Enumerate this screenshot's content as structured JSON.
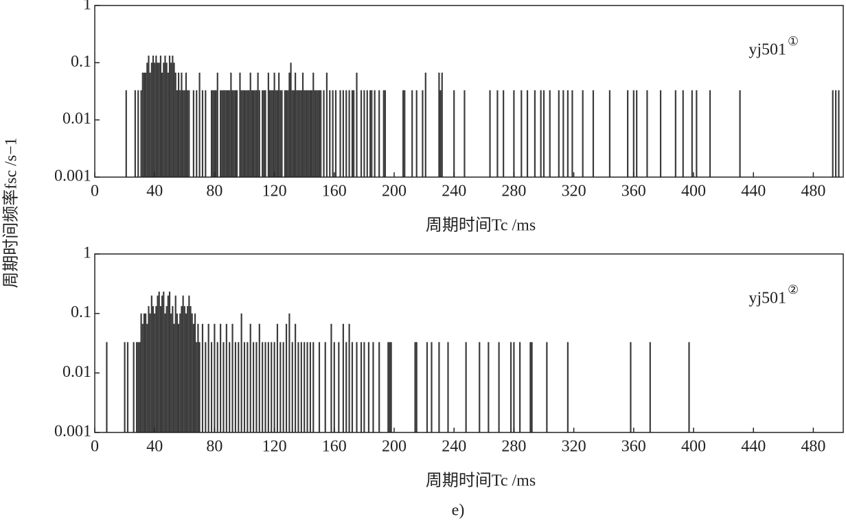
{
  "figure_ylabel": "周期时间频率fsc /s−1",
  "caption": "e)",
  "chart_data": [
    {
      "type": "bar",
      "annotation": "yj501",
      "annotation_superscript": "①",
      "xlabel": "周期时间Tc /ms",
      "color": "#3a3a3a",
      "log_y": true,
      "grid": false,
      "xlim": [
        0,
        500
      ],
      "xticks": [
        0,
        40,
        80,
        120,
        160,
        200,
        240,
        280,
        320,
        360,
        400,
        440,
        480
      ],
      "ylim": [
        0.001,
        1
      ],
      "yticks": [
        0.001,
        0.01,
        0.1,
        1
      ],
      "x": [
        21,
        27,
        29,
        31,
        32,
        33,
        34,
        35,
        36,
        37,
        38,
        39,
        40,
        41,
        42,
        43,
        44,
        45,
        46,
        47,
        48,
        49,
        50,
        51,
        52,
        53,
        54,
        55,
        56,
        57,
        58,
        59,
        60,
        61,
        62,
        63,
        66,
        68,
        70,
        72,
        74,
        78,
        79,
        80,
        81,
        82,
        84,
        85,
        86,
        87,
        88,
        89,
        90,
        91,
        92,
        93,
        94,
        95,
        97,
        98,
        99,
        100,
        101,
        102,
        103,
        104,
        105,
        106,
        107,
        108,
        109,
        110,
        112,
        113,
        114,
        116,
        117,
        118,
        119,
        120,
        121,
        122,
        123,
        124,
        125,
        127,
        128,
        129,
        130,
        131,
        132,
        133,
        134,
        135,
        136,
        137,
        138,
        139,
        140,
        141,
        142,
        143,
        144,
        145,
        146,
        147,
        148,
        149,
        150,
        151,
        153,
        155,
        157,
        159,
        161,
        164,
        166,
        168,
        170,
        172,
        173,
        175,
        178,
        180,
        182,
        184,
        185,
        187,
        190,
        193,
        194,
        206,
        207,
        212,
        215,
        219,
        221,
        230,
        231,
        232,
        240,
        247,
        264,
        269,
        273,
        280,
        285,
        289,
        294,
        298,
        300,
        304,
        310,
        313,
        316,
        319,
        326,
        333,
        344,
        356,
        360,
        362,
        369,
        378,
        388,
        393,
        399,
        402,
        411,
        431,
        493,
        495,
        497
      ],
      "values": [
        0.033,
        0.033,
        0.033,
        0.033,
        0.067,
        0.067,
        0.067,
        0.1,
        0.133,
        0.067,
        0.1,
        0.133,
        0.1,
        0.133,
        0.1,
        0.1,
        0.133,
        0.067,
        0.1,
        0.133,
        0.1,
        0.067,
        0.133,
        0.1,
        0.133,
        0.1,
        0.067,
        0.033,
        0.067,
        0.033,
        0.067,
        0.033,
        0.033,
        0.067,
        0.033,
        0.033,
        0.033,
        0.033,
        0.067,
        0.033,
        0.033,
        0.033,
        0.033,
        0.033,
        0.033,
        0.067,
        0.033,
        0.033,
        0.033,
        0.033,
        0.033,
        0.033,
        0.033,
        0.067,
        0.033,
        0.033,
        0.033,
        0.033,
        0.067,
        0.033,
        0.033,
        0.033,
        0.033,
        0.033,
        0.033,
        0.067,
        0.033,
        0.033,
        0.033,
        0.033,
        0.067,
        0.033,
        0.033,
        0.033,
        0.033,
        0.067,
        0.033,
        0.033,
        0.033,
        0.067,
        0.033,
        0.033,
        0.067,
        0.033,
        0.033,
        0.033,
        0.033,
        0.033,
        0.067,
        0.1,
        0.033,
        0.033,
        0.067,
        0.033,
        0.033,
        0.033,
        0.033,
        0.067,
        0.033,
        0.033,
        0.033,
        0.033,
        0.033,
        0.033,
        0.067,
        0.033,
        0.033,
        0.033,
        0.033,
        0.033,
        0.033,
        0.067,
        0.033,
        0.033,
        0.033,
        0.033,
        0.033,
        0.033,
        0.033,
        0.033,
        0.033,
        0.067,
        0.033,
        0.033,
        0.033,
        0.033,
        0.033,
        0.033,
        0.033,
        0.033,
        0.033,
        0.033,
        0.033,
        0.033,
        0.033,
        0.033,
        0.067,
        0.067,
        0.033,
        0.067,
        0.033,
        0.033,
        0.033,
        0.033,
        0.033,
        0.033,
        0.033,
        0.033,
        0.033,
        0.033,
        0.033,
        0.033,
        0.033,
        0.033,
        0.033,
        0.033,
        0.033,
        0.033,
        0.033,
        0.033,
        0.033,
        0.033,
        0.033,
        0.033,
        0.033,
        0.033,
        0.033,
        0.033,
        0.033,
        0.033,
        0.033,
        0.033,
        0.033
      ]
    },
    {
      "type": "bar",
      "annotation": "yj501",
      "annotation_superscript": "②",
      "xlabel": "周期时间Tc /ms",
      "color": "#3a3a3a",
      "log_y": true,
      "grid": false,
      "xlim": [
        0,
        500
      ],
      "xticks": [
        0,
        40,
        80,
        120,
        160,
        200,
        240,
        280,
        320,
        360,
        400,
        440,
        480
      ],
      "ylim": [
        0.001,
        1
      ],
      "yticks": [
        0.001,
        0.01,
        0.1,
        1
      ],
      "x": [
        8,
        20,
        22,
        26,
        28,
        29,
        30,
        31,
        32,
        33,
        34,
        35,
        36,
        37,
        38,
        39,
        40,
        41,
        42,
        43,
        44,
        45,
        46,
        47,
        48,
        49,
        50,
        51,
        52,
        53,
        54,
        55,
        56,
        57,
        58,
        59,
        60,
        61,
        62,
        63,
        64,
        65,
        66,
        67,
        68,
        69,
        70,
        72,
        74,
        76,
        78,
        80,
        82,
        84,
        86,
        88,
        90,
        92,
        94,
        96,
        98,
        100,
        102,
        104,
        106,
        108,
        110,
        112,
        114,
        116,
        118,
        120,
        122,
        124,
        126,
        128,
        130,
        132,
        134,
        136,
        138,
        140,
        142,
        144,
        146,
        150,
        154,
        158,
        160,
        163,
        166,
        168,
        170,
        172,
        175,
        178,
        180,
        183,
        186,
        190,
        196,
        197,
        198,
        214,
        215,
        222,
        225,
        230,
        236,
        248,
        257,
        263,
        270,
        278,
        280,
        284,
        291,
        292,
        302,
        316,
        358,
        371,
        397
      ],
      "values": [
        0.033,
        0.033,
        0.033,
        0.033,
        0.033,
        0.033,
        0.033,
        0.1,
        0.067,
        0.1,
        0.1,
        0.067,
        0.133,
        0.1,
        0.2,
        0.133,
        0.1,
        0.133,
        0.2,
        0.233,
        0.133,
        0.2,
        0.233,
        0.1,
        0.133,
        0.2,
        0.233,
        0.1,
        0.133,
        0.067,
        0.2,
        0.1,
        0.067,
        0.1,
        0.133,
        0.2,
        0.133,
        0.1,
        0.133,
        0.2,
        0.133,
        0.1,
        0.067,
        0.1,
        0.033,
        0.067,
        0.033,
        0.067,
        0.033,
        0.067,
        0.033,
        0.067,
        0.033,
        0.067,
        0.033,
        0.067,
        0.033,
        0.067,
        0.033,
        0.033,
        0.1,
        0.033,
        0.033,
        0.067,
        0.033,
        0.033,
        0.067,
        0.033,
        0.033,
        0.033,
        0.033,
        0.033,
        0.067,
        0.033,
        0.033,
        0.067,
        0.1,
        0.033,
        0.067,
        0.033,
        0.033,
        0.033,
        0.033,
        0.033,
        0.033,
        0.033,
        0.033,
        0.067,
        0.033,
        0.033,
        0.067,
        0.033,
        0.067,
        0.033,
        0.033,
        0.033,
        0.033,
        0.033,
        0.033,
        0.033,
        0.033,
        0.033,
        0.033,
        0.033,
        0.033,
        0.033,
        0.033,
        0.033,
        0.033,
        0.033,
        0.033,
        0.033,
        0.033,
        0.033,
        0.033,
        0.033,
        0.033,
        0.033,
        0.033,
        0.033,
        0.033,
        0.033,
        0.033
      ]
    }
  ]
}
